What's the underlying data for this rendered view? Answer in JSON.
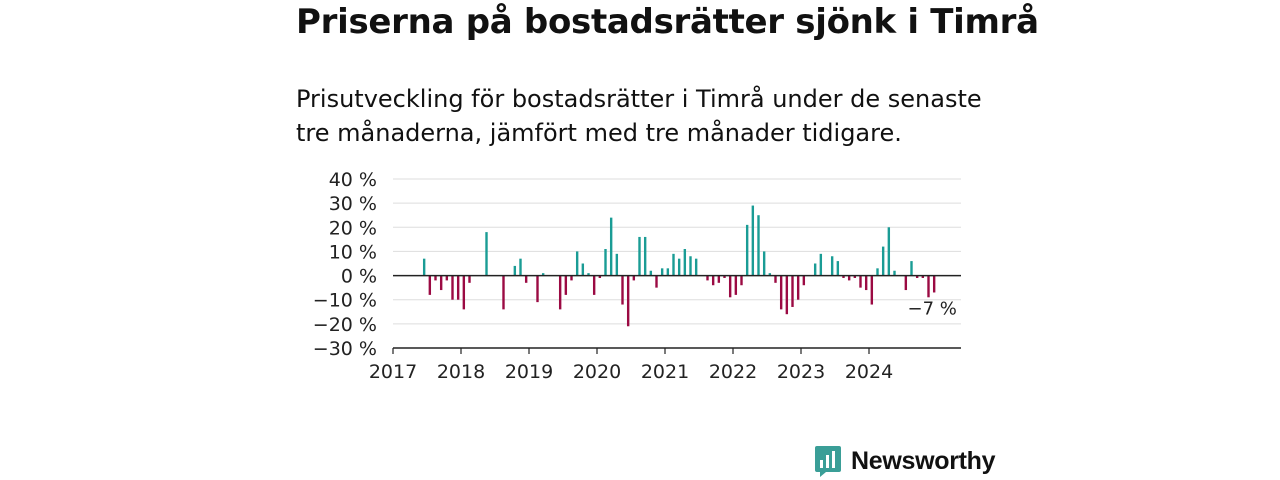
{
  "title": "Priserna på bostadsrätter sjönk i Timrå",
  "subtitle": "Prisutveckling för bostadsrätter i Timrå under de senaste tre månaderna, jämfört med tre månader tidigare.",
  "brand": {
    "name": "Newsworthy",
    "icon": "newsworthy-logo-icon",
    "color": "#3a9e97"
  },
  "colors": {
    "positive": "#1a9c95",
    "negative": "#9b0a43",
    "zero_line": "#222222",
    "grid": "#dddddd"
  },
  "chart_data": {
    "type": "bar",
    "title": "Priserna på bostadsrätter sjönk i Timrå",
    "xlabel": "",
    "ylabel": "",
    "ylim": [
      -30,
      40
    ],
    "y_ticks": [
      40,
      30,
      20,
      10,
      0,
      -10,
      -20,
      -30
    ],
    "y_tick_labels": [
      "40 %",
      "30 %",
      "20 %",
      "10 %",
      "0 %",
      "−10 %",
      "−20 %",
      "−30 %"
    ],
    "x_ticks": [
      "2017",
      "2018",
      "2019",
      "2020",
      "2021",
      "2022",
      "2023",
      "2024"
    ],
    "x_start": "2017-01",
    "grid": true,
    "annotation": {
      "label": "−7 %",
      "x": "2024-12",
      "y": -7
    },
    "x": [
      "2017-06",
      "2017-07",
      "2017-08",
      "2017-09",
      "2017-10",
      "2017-11",
      "2017-12",
      "2018-01",
      "2018-02",
      "2018-03",
      "2018-04",
      "2018-05",
      "2018-06",
      "2018-07",
      "2018-08",
      "2018-09",
      "2018-10",
      "2018-11",
      "2018-12",
      "2019-01",
      "2019-02",
      "2019-03",
      "2019-04",
      "2019-05",
      "2019-06",
      "2019-07",
      "2019-08",
      "2019-09",
      "2019-10",
      "2019-11",
      "2019-12",
      "2020-01",
      "2020-02",
      "2020-03",
      "2020-04",
      "2020-05",
      "2020-06",
      "2020-07",
      "2020-08",
      "2020-09",
      "2020-10",
      "2020-11",
      "2020-12",
      "2021-01",
      "2021-02",
      "2021-03",
      "2021-04",
      "2021-05",
      "2021-06",
      "2021-07",
      "2021-08",
      "2021-09",
      "2021-10",
      "2021-11",
      "2021-12",
      "2022-01",
      "2022-02",
      "2022-03",
      "2022-04",
      "2022-05",
      "2022-06",
      "2022-07",
      "2022-08",
      "2022-09",
      "2022-10",
      "2022-11",
      "2022-12",
      "2023-01",
      "2023-02",
      "2023-03",
      "2023-04",
      "2023-05",
      "2023-06",
      "2023-07",
      "2023-08",
      "2023-09",
      "2023-10",
      "2023-11",
      "2023-12",
      "2024-01",
      "2024-02",
      "2024-03",
      "2024-04",
      "2024-05",
      "2024-06",
      "2024-07",
      "2024-08",
      "2024-09",
      "2024-10",
      "2024-11",
      "2024-12"
    ],
    "values": [
      7,
      -8,
      -2,
      -6,
      -2,
      -10,
      -10,
      -14,
      -3,
      0,
      0,
      18,
      0,
      0,
      -14,
      0,
      4,
      7,
      -3,
      0,
      -11,
      1,
      0,
      0,
      -14,
      -8,
      -2,
      10,
      5,
      1,
      -8,
      -1,
      11,
      24,
      9,
      -12,
      -21,
      -2,
      16,
      16,
      2,
      -5,
      3,
      3,
      9,
      7,
      11,
      8,
      7,
      0,
      -2,
      -4,
      -3,
      -1,
      -9,
      -8,
      -4,
      21,
      29,
      25,
      10,
      1,
      -3,
      -14,
      -16,
      -13,
      -10,
      -4,
      0,
      5,
      9,
      0,
      8,
      6,
      -1,
      -2,
      -1,
      -5,
      -6,
      -12,
      3,
      12,
      20,
      2,
      0,
      -6,
      6,
      -1,
      -1,
      -9,
      -7
    ]
  }
}
